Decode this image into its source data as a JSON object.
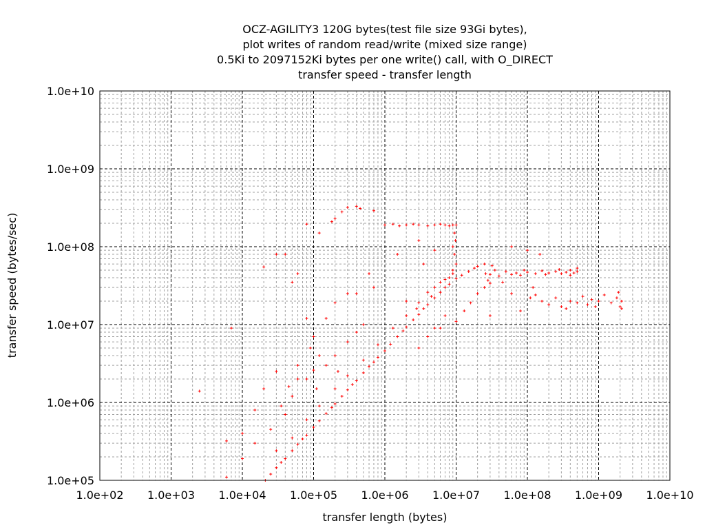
{
  "chart_data": {
    "type": "scatter",
    "title_lines": [
      "OCZ-AGILITY3 120G bytes(test file size 93Gi bytes),",
      "plot writes of random read/write (mixed size range)",
      "0.5Ki to 2097152Ki bytes per one write() call, with O_DIRECT",
      "transfer speed - transfer length"
    ],
    "xlabel": "transfer length (bytes)",
    "ylabel": "transfer speed (bytes/sec)",
    "xscale": "log",
    "yscale": "log",
    "xlim": [
      100.0,
      10000000000.0
    ],
    "ylim": [
      100000.0,
      10000000000.0
    ],
    "xticks": [
      100.0,
      1000.0,
      10000.0,
      100000.0,
      1000000.0,
      10000000.0,
      100000000.0,
      1000000000.0,
      10000000000.0
    ],
    "xtick_labels": [
      "1.0e+02",
      "1.0e+03",
      "1.0e+04",
      "1.0e+05",
      "1.0e+06",
      "1.0e+07",
      "1.0e+08",
      "1.0e+09",
      "1.0e+10"
    ],
    "yticks": [
      100000.0,
      1000000.0,
      10000000.0,
      100000000.0,
      1000000000.0,
      10000000000.0
    ],
    "ytick_labels": [
      "1.0e+05",
      "1.0e+06",
      "1.0e+07",
      "1.0e+08",
      "1.0e+09",
      "1.0e+10"
    ],
    "grid": true,
    "marker_color": "#ff0000",
    "series": [
      {
        "name": "writes",
        "points": [
          [
            21000.0,
            100000.0
          ],
          [
            25000.0,
            120000.0
          ],
          [
            30000.0,
            145000.0
          ],
          [
            35000.0,
            170000.0
          ],
          [
            40000.0,
            190000.0
          ],
          [
            50000.0,
            240000.0
          ],
          [
            60000.0,
            290000.0
          ],
          [
            70000.0,
            340000.0
          ],
          [
            80000.0,
            380000.0
          ],
          [
            100000.0,
            480000.0
          ],
          [
            120000.0,
            580000.0
          ],
          [
            150000.0,
            720000.0
          ],
          [
            180000.0,
            860000.0
          ],
          [
            200000.0,
            960000.0
          ],
          [
            250000.0,
            1200000.0
          ],
          [
            300000.0,
            1450000.0
          ],
          [
            350000.0,
            1700000.0
          ],
          [
            400000.0,
            1900000.0
          ],
          [
            500000.0,
            2400000.0
          ],
          [
            600000.0,
            2900000.0
          ],
          [
            700000.0,
            3300000.0
          ],
          [
            800000.0,
            3800000.0
          ],
          [
            1000000.0,
            4600000.0
          ],
          [
            1200000.0,
            5600000.0
          ],
          [
            1500000.0,
            7000000.0
          ],
          [
            1800000.0,
            8300000.0
          ],
          [
            2000000.0,
            9300000.0
          ],
          [
            2500000.0,
            11500000.0
          ],
          [
            3000000.0,
            13500000.0
          ],
          [
            3500000.0,
            16000000.0
          ],
          [
            4000000.0,
            18000000.0
          ],
          [
            5000000.0,
            22000000.0
          ],
          [
            6000000.0,
            26000000.0
          ],
          [
            7000000.0,
            30000000.0
          ],
          [
            8000000.0,
            33000000.0
          ],
          [
            10000000.0,
            39000000.0
          ],
          [
            12000000.0,
            43000000.0
          ],
          [
            15000000.0,
            48000000.0
          ],
          [
            18000000.0,
            53000000.0
          ],
          [
            20000000.0,
            56000000.0
          ],
          [
            25000000.0,
            60000000.0
          ],
          [
            30000.0,
            240000.0
          ],
          [
            50000.0,
            350000.0
          ],
          [
            80000.0,
            600000.0
          ],
          [
            120000.0,
            900000.0
          ],
          [
            200000.0,
            1500000.0
          ],
          [
            300000.0,
            2200000.0
          ],
          [
            500000.0,
            3500000.0
          ],
          [
            800000.0,
            5500000.0
          ],
          [
            1300000.0,
            9000000.0
          ],
          [
            2000000.0,
            13000000.0
          ],
          [
            3000000.0,
            19000000.0
          ],
          [
            4000000.0,
            26000000.0
          ],
          [
            5000000.0,
            30000000.0
          ],
          [
            6000000.0,
            35000000.0
          ],
          [
            8000000.0,
            40000000.0
          ],
          [
            9000000.0,
            45000000.0
          ],
          [
            7000000.0,
            38000000.0
          ],
          [
            4500000.0,
            23000000.0
          ],
          [
            2800000.0,
            16000000.0
          ],
          [
            10000000.0,
            11000000.0
          ],
          [
            13000000.0,
            15000000.0
          ],
          [
            16000000.0,
            19000000.0
          ],
          [
            20000000.0,
            25000000.0
          ],
          [
            25000000.0,
            30000000.0
          ],
          [
            30000000.0,
            34000000.0
          ],
          [
            5000000.0,
            9000000.0
          ],
          [
            7000000.0,
            13000000.0
          ],
          [
            30000000.0,
            44000000.0
          ],
          [
            35000000.0,
            50000000.0
          ],
          [
            40000000.0,
            42000000.0
          ],
          [
            50000000.0,
            48000000.0
          ],
          [
            60000000.0,
            44000000.0
          ],
          [
            70000000.0,
            46000000.0
          ],
          [
            80000000.0,
            43000000.0
          ],
          [
            100000000.0,
            47000000.0
          ],
          [
            130000000.0,
            45000000.0
          ],
          [
            160000000.0,
            49000000.0
          ],
          [
            200000000.0,
            46000000.0
          ],
          [
            250000000.0,
            48000000.0
          ],
          [
            300000000.0,
            45000000.0
          ],
          [
            350000000.0,
            47000000.0
          ],
          [
            400000000.0,
            50000000.0
          ],
          [
            450000000.0,
            46000000.0
          ],
          [
            500000000.0,
            48000000.0
          ],
          [
            500000000.0,
            53000000.0
          ],
          [
            400000000.0,
            43000000.0
          ],
          [
            280000000.0,
            51000000.0
          ],
          [
            180000000.0,
            44000000.0
          ],
          [
            90000000.0,
            50000000.0
          ],
          [
            28000000.0,
            37000000.0
          ],
          [
            32000000.0,
            57000000.0
          ],
          [
            45000000.0,
            35000000.0
          ],
          [
            26000000.0,
            45000000.0
          ],
          [
            110000000.0,
            22000000.0
          ],
          [
            130000000.0,
            24000000.0
          ],
          [
            160000000.0,
            20000000.0
          ],
          [
            200000000.0,
            18000000.0
          ],
          [
            250000000.0,
            22000000.0
          ],
          [
            300000000.0,
            17000000.0
          ],
          [
            400000000.0,
            20000000.0
          ],
          [
            500000000.0,
            19000000.0
          ],
          [
            600000000.0,
            23000000.0
          ],
          [
            700000000.0,
            18000000.0
          ],
          [
            800000000.0,
            21000000.0
          ],
          [
            1000000000.0,
            20000000.0
          ],
          [
            1200000000.0,
            24000000.0
          ],
          [
            1500000000.0,
            19000000.0
          ],
          [
            1800000000.0,
            22000000.0
          ],
          [
            2000000000.0,
            17000000.0
          ],
          [
            2100000000.0,
            20000000.0
          ],
          [
            2100000000.0,
            16000000.0
          ],
          [
            1900000000.0,
            26000000.0
          ],
          [
            900000000.0,
            17000000.0
          ],
          [
            350000000.0,
            16000000.0
          ],
          [
            1000000.0,
            190000000.0
          ],
          [
            1300000.0,
            195000000.0
          ],
          [
            1600000.0,
            185000000.0
          ],
          [
            2000000.0,
            190000000.0
          ],
          [
            2500000.0,
            195000000.0
          ],
          [
            3000000.0,
            190000000.0
          ],
          [
            4000000.0,
            185000000.0
          ],
          [
            5000000.0,
            190000000.0
          ],
          [
            6000000.0,
            195000000.0
          ],
          [
            7000000.0,
            190000000.0
          ],
          [
            8000000.0,
            185000000.0
          ],
          [
            9000000.0,
            190000000.0
          ],
          [
            10000000.0,
            190000000.0
          ],
          [
            9500000.0,
            150000000.0
          ],
          [
            9800000.0,
            120000000.0
          ],
          [
            9000000.0,
            100000000.0
          ],
          [
            9500000.0,
            80000000.0
          ],
          [
            10000000.0,
            60000000.0
          ],
          [
            9000000.0,
            50000000.0
          ],
          [
            300000.0,
            320000000.0
          ],
          [
            400000.0,
            330000000.0
          ],
          [
            450000.0,
            310000000.0
          ],
          [
            250000.0,
            280000000.0
          ],
          [
            200000.0,
            230000000.0
          ],
          [
            180000.0,
            210000000.0
          ],
          [
            700000.0,
            290000000.0
          ],
          [
            120000.0,
            150000000.0
          ],
          [
            80000.0,
            195000000.0
          ],
          [
            60000.0,
            45000000.0
          ],
          [
            50000.0,
            35000000.0
          ],
          [
            30000.0,
            80000000.0
          ],
          [
            40000.0,
            80000000.0
          ],
          [
            20000.0,
            55000000.0
          ],
          [
            80000.0,
            12000000.0
          ],
          [
            100000.0,
            7000000.0
          ],
          [
            200000.0,
            19000000.0
          ],
          [
            300000.0,
            25000000.0
          ],
          [
            400000.0,
            25000000.0
          ],
          [
            600000.0,
            45000000.0
          ],
          [
            700000.0,
            30000000.0
          ],
          [
            150000.0,
            12000000.0
          ],
          [
            90000.0,
            5000000.0
          ],
          [
            60000.0,
            3000000.0
          ],
          [
            30000.0,
            2500000.0
          ],
          [
            20000.0,
            1500000.0
          ],
          [
            15000.0,
            800000.0
          ],
          [
            10000.0,
            400000.0
          ],
          [
            7000.0,
            9000000.0
          ],
          [
            6000.0,
            320000.0
          ],
          [
            6000.0,
            110000.0
          ],
          [
            10000.0,
            190000.0
          ],
          [
            15000.0,
            300000.0
          ],
          [
            25000.0,
            450000.0
          ],
          [
            40000.0,
            700000.0
          ],
          [
            50000.0,
            1200000.0
          ],
          [
            80000.0,
            2000000.0
          ],
          [
            100000.0,
            2600000.0
          ],
          [
            120000.0,
            4000000.0
          ],
          [
            150000.0,
            3000000.0
          ],
          [
            200000.0,
            4000000.0
          ],
          [
            300000.0,
            6000000.0
          ],
          [
            400000.0,
            8000000.0
          ],
          [
            500000.0,
            10000000.0
          ],
          [
            3000000.0,
            5000000.0
          ],
          [
            4000000.0,
            7000000.0
          ],
          [
            6000000.0,
            9000000.0
          ],
          [
            3500000.0,
            60000000.0
          ],
          [
            5000000.0,
            90000000.0
          ],
          [
            2000000.0,
            20000000.0
          ],
          [
            1500000.0,
            80000000.0
          ],
          [
            3000000.0,
            120000000.0
          ],
          [
            2500.0,
            1400000.0
          ],
          [
            35000.0,
            900000.0
          ],
          [
            45000.0,
            1600000.0
          ],
          [
            60000.0,
            2000000.0
          ],
          [
            110000.0,
            1500000.0
          ],
          [
            220000.0,
            2500000.0
          ],
          [
            60000000.0,
            100000000.0
          ],
          [
            100000000.0,
            90000000.0
          ],
          [
            150000000.0,
            80000000.0
          ],
          [
            60000000.0,
            25000000.0
          ],
          [
            120000000.0,
            30000000.0
          ],
          [
            30000000.0,
            13000000.0
          ],
          [
            80000000.0,
            15000000.0
          ]
        ]
      }
    ]
  }
}
